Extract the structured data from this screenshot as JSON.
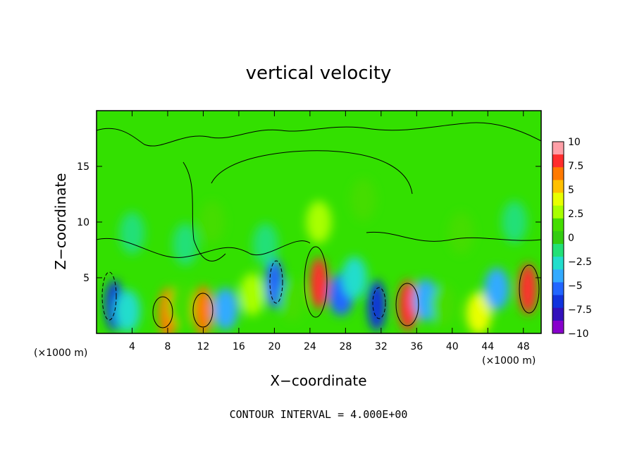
{
  "chart_data": {
    "type": "heatmap",
    "title": "vertical velocity",
    "xlabel": "X−coordinate",
    "ylabel": "Z−coordinate",
    "x_unit_left": "(×1000 m)",
    "x_unit_right": "(×1000 m)",
    "x_ticks": [
      "4",
      "8",
      "12",
      "16",
      "20",
      "24",
      "28",
      "32",
      "36",
      "40",
      "44",
      "48"
    ],
    "x_tick_values": [
      4,
      8,
      12,
      16,
      20,
      24,
      28,
      32,
      36,
      40,
      44,
      48
    ],
    "y_ticks": [
      "5",
      "10",
      "15"
    ],
    "y_tick_values": [
      5,
      10,
      15
    ],
    "xlim": [
      0,
      50
    ],
    "ylim": [
      0,
      20
    ],
    "colorbar": {
      "labels": [
        "10",
        "7.5",
        "5",
        "2.5",
        "0",
        "−2.5",
        "−5",
        "−7.5",
        "−10"
      ],
      "values": [
        10,
        7.5,
        5,
        2.5,
        0,
        -2.5,
        -5,
        -7.5,
        -10
      ],
      "colors": [
        "#ff9fa7",
        "#ff2d2d",
        "#ff7a00",
        "#ffc000",
        "#e8ff00",
        "#a8ff00",
        "#44dd00",
        "#33cc11",
        "#22e077",
        "#22ddcc",
        "#33aaff",
        "#2266ff",
        "#1133dd",
        "#3311bb",
        "#8800cc"
      ]
    },
    "cells": [
      {
        "x": 2,
        "z": 2.5,
        "w": -6.5
      },
      {
        "x": 3.5,
        "z": 2,
        "w": -3
      },
      {
        "x": 8,
        "z": 1.8,
        "w": 7.5
      },
      {
        "x": 9.5,
        "z": 2.5,
        "w": 2
      },
      {
        "x": 12,
        "z": 2,
        "w": 7.5
      },
      {
        "x": 14.5,
        "z": 2.2,
        "w": -4
      },
      {
        "x": 17.5,
        "z": 3.5,
        "w": 3
      },
      {
        "x": 20,
        "z": 4.5,
        "w": -6
      },
      {
        "x": 22,
        "z": 3,
        "w": 2
      },
      {
        "x": 25,
        "z": 4.5,
        "w": 9
      },
      {
        "x": 27.5,
        "z": 3.5,
        "w": -5
      },
      {
        "x": 29,
        "z": 5,
        "w": -3
      },
      {
        "x": 31.5,
        "z": 2.5,
        "w": -7
      },
      {
        "x": 35,
        "z": 2.5,
        "w": 8
      },
      {
        "x": 37,
        "z": 3,
        "w": -4
      },
      {
        "x": 39,
        "z": 2.5,
        "w": 2
      },
      {
        "x": 43,
        "z": 1.8,
        "w": 4.5
      },
      {
        "x": 45,
        "z": 4,
        "w": -4
      },
      {
        "x": 48.5,
        "z": 4,
        "w": 8.5
      },
      {
        "x": 10,
        "z": 8,
        "w": -2
      },
      {
        "x": 13,
        "z": 10,
        "w": 2
      },
      {
        "x": 19,
        "z": 8,
        "w": -1.5
      },
      {
        "x": 25,
        "z": 10,
        "w": 3
      },
      {
        "x": 30,
        "z": 12,
        "w": 1.5
      },
      {
        "x": 4,
        "z": 9,
        "w": -1.5
      },
      {
        "x": 41,
        "z": 9,
        "w": 1
      },
      {
        "x": 47,
        "z": 10,
        "w": -1
      }
    ],
    "contour_interval": "CONTOUR INTERVAL = 4.000E+00"
  }
}
